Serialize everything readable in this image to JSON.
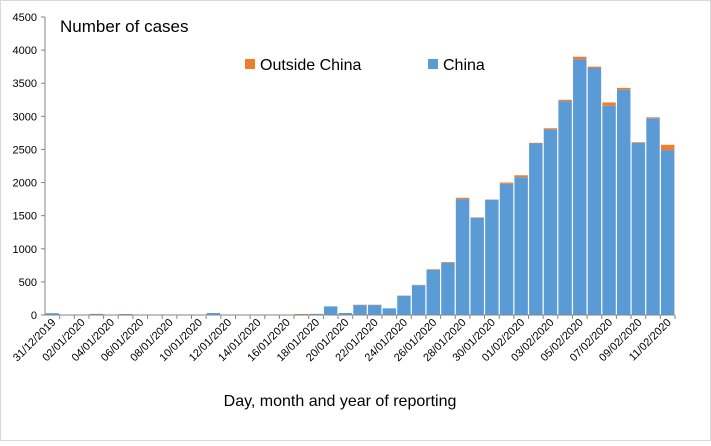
{
  "chart_data": {
    "type": "bar",
    "stacked": true,
    "title": "Number of cases",
    "x_label": "Day, month and year of reporting",
    "categories": [
      "31/12/2019",
      null,
      "02/01/2020",
      null,
      "04/01/2020",
      null,
      "06/01/2020",
      null,
      "08/01/2020",
      null,
      "10/01/2020",
      null,
      "12/01/2020",
      null,
      "14/01/2020",
      null,
      "16/01/2020",
      null,
      "18/01/2020",
      null,
      "20/01/2020",
      null,
      "22/01/2020",
      null,
      "24/01/2020",
      null,
      "26/01/2020",
      null,
      "28/01/2020",
      null,
      "30/01/2020",
      null,
      "01/02/2020",
      null,
      "03/02/2020",
      null,
      "05/02/2020",
      null,
      "07/02/2020",
      null,
      "09/02/2020",
      null,
      "11/02/2020"
    ],
    "series": [
      {
        "name": "China",
        "color": "#5b9bd5",
        "values": [
          27,
          0,
          0,
          17,
          0,
          15,
          0,
          0,
          0,
          0,
          0,
          30,
          0,
          0,
          0,
          0,
          0,
          0,
          17,
          130,
          30,
          150,
          150,
          100,
          290,
          450,
          680,
          790,
          1750,
          1470,
          1740,
          1980,
          2080,
          2590,
          2800,
          3230,
          3860,
          3730,
          3160,
          3400,
          2600,
          2970,
          2490
        ]
      },
      {
        "name": "Outside China",
        "color": "#ed7d31",
        "values": [
          0,
          0,
          0,
          0,
          0,
          0,
          0,
          0,
          0,
          0,
          0,
          0,
          0,
          0,
          0,
          0,
          0,
          15,
          0,
          0,
          0,
          5,
          5,
          0,
          5,
          5,
          10,
          10,
          20,
          5,
          5,
          20,
          30,
          10,
          20,
          20,
          40,
          20,
          50,
          30,
          10,
          15,
          80
        ]
      }
    ],
    "ylim": [
      0,
      4500
    ],
    "yticks": [
      0,
      500,
      1000,
      1500,
      2000,
      2500,
      3000,
      3500,
      4000,
      4500
    ],
    "grid": false
  }
}
